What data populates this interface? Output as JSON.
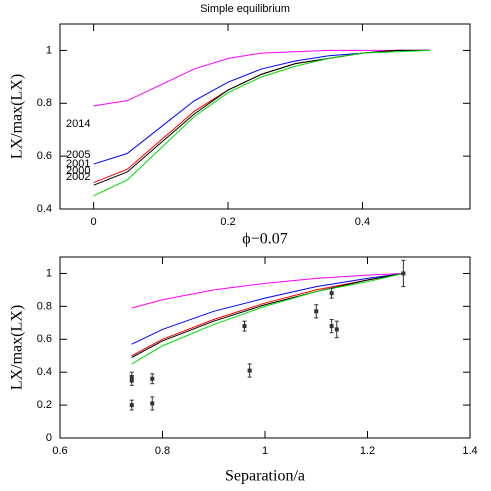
{
  "chart_data": [
    {
      "type": "line",
      "title": "Simple equilibrium",
      "xlabel": "ϕ−0.07",
      "ylabel": "LX/max(LX)",
      "xlim": [
        -0.05,
        0.56
      ],
      "ylim": [
        0.4,
        1.1
      ],
      "xticks": [
        0,
        0.2,
        0.4
      ],
      "yticks": [
        0.4,
        0.6,
        0.8,
        {
          "value": 1,
          "label": "1"
        }
      ],
      "x": [
        0,
        0.05,
        0.1,
        0.15,
        0.2,
        0.25,
        0.3,
        0.35,
        0.4,
        0.45,
        0.5
      ],
      "series": [
        {
          "name": "2014",
          "color": "#ff00ff",
          "values": [
            0.79,
            0.81,
            0.87,
            0.93,
            0.97,
            0.99,
            0.995,
            1,
            1,
            1,
            1
          ]
        },
        {
          "name": "2005",
          "color": "#0000ff",
          "values": [
            0.57,
            0.61,
            0.71,
            0.81,
            0.88,
            0.93,
            0.96,
            0.98,
            0.99,
            1,
            1
          ]
        },
        {
          "name": "2001",
          "color": "#ff0000",
          "values": [
            0.5,
            0.55,
            0.66,
            0.77,
            0.85,
            0.91,
            0.95,
            0.97,
            0.99,
            1,
            1
          ]
        },
        {
          "name": "2000",
          "color": "#000000",
          "values": [
            0.49,
            0.54,
            0.65,
            0.76,
            0.85,
            0.91,
            0.95,
            0.97,
            0.99,
            1,
            1
          ]
        },
        {
          "name": "2002",
          "color": "#00dd00",
          "values": [
            0.45,
            0.51,
            0.63,
            0.75,
            0.84,
            0.9,
            0.94,
            0.97,
            0.99,
            0.995,
            1
          ]
        }
      ]
    },
    {
      "type": "line",
      "xlabel": "Separation/a",
      "ylabel": "LX/max(LX)",
      "xlim": [
        0.6,
        1.4
      ],
      "ylim": [
        0,
        1.1
      ],
      "xticks": [
        0.6,
        0.8,
        {
          "value": 1,
          "label": "1"
        },
        1.2,
        1.4
      ],
      "yticks": [
        0,
        0.2,
        0.4,
        0.6,
        0.8,
        {
          "value": 1,
          "label": "1"
        }
      ],
      "x": [
        0.74,
        0.8,
        0.9,
        1.0,
        1.1,
        1.2,
        1.27
      ],
      "series": [
        {
          "color": "#ff00ff",
          "values": [
            0.79,
            0.84,
            0.9,
            0.94,
            0.97,
            0.99,
            1
          ]
        },
        {
          "color": "#0000ff",
          "values": [
            0.57,
            0.66,
            0.77,
            0.85,
            0.92,
            0.97,
            1
          ]
        },
        {
          "color": "#ff0000",
          "values": [
            0.5,
            0.6,
            0.72,
            0.82,
            0.9,
            0.96,
            1
          ]
        },
        {
          "color": "#000000",
          "values": [
            0.49,
            0.59,
            0.71,
            0.81,
            0.89,
            0.96,
            1
          ]
        },
        {
          "color": "#00dd00",
          "values": [
            0.45,
            0.56,
            0.69,
            0.8,
            0.89,
            0.95,
            1
          ]
        }
      ],
      "errorbars": {
        "color": "#333333",
        "x": [
          0.74,
          0.74,
          0.74,
          0.78,
          0.78,
          0.96,
          0.97,
          1.1,
          1.13,
          1.13,
          1.14,
          1.27
        ],
        "y": [
          0.37,
          0.35,
          0.2,
          0.36,
          0.21,
          0.68,
          0.41,
          0.77,
          0.88,
          0.68,
          0.66,
          1.0
        ],
        "errors": [
          0.03,
          0.03,
          0.03,
          0.03,
          0.04,
          0.03,
          0.04,
          0.04,
          0.03,
          0.04,
          0.05,
          0.08
        ]
      }
    }
  ]
}
